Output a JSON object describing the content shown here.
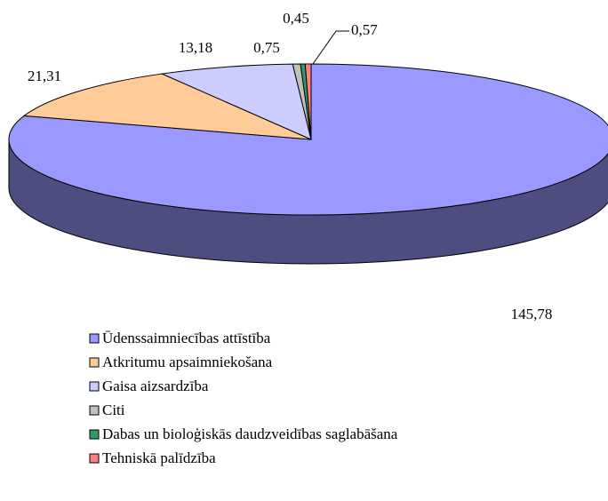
{
  "chart_data": {
    "type": "pie3d",
    "categories": [
      "Ūdenssaimniecības attīstība",
      "Atkritumu apsaimniekošana",
      "Gaisa aizsardzība",
      "Citi",
      "Dabas un bioloģiskās daudzveidības saglabāšana",
      "Tehniskā palīdzība"
    ],
    "values": [
      145.78,
      21.31,
      13.18,
      0.75,
      0.45,
      0.57
    ],
    "value_labels": [
      "145,78",
      "21,31",
      "13,18",
      "0,75",
      "0,45",
      "0,57"
    ],
    "colors": [
      "#9999ff",
      "#ffcc99",
      "#ccccff",
      "#c0c0c0",
      "#339966",
      "#ff8080"
    ],
    "legend": "bottom"
  }
}
